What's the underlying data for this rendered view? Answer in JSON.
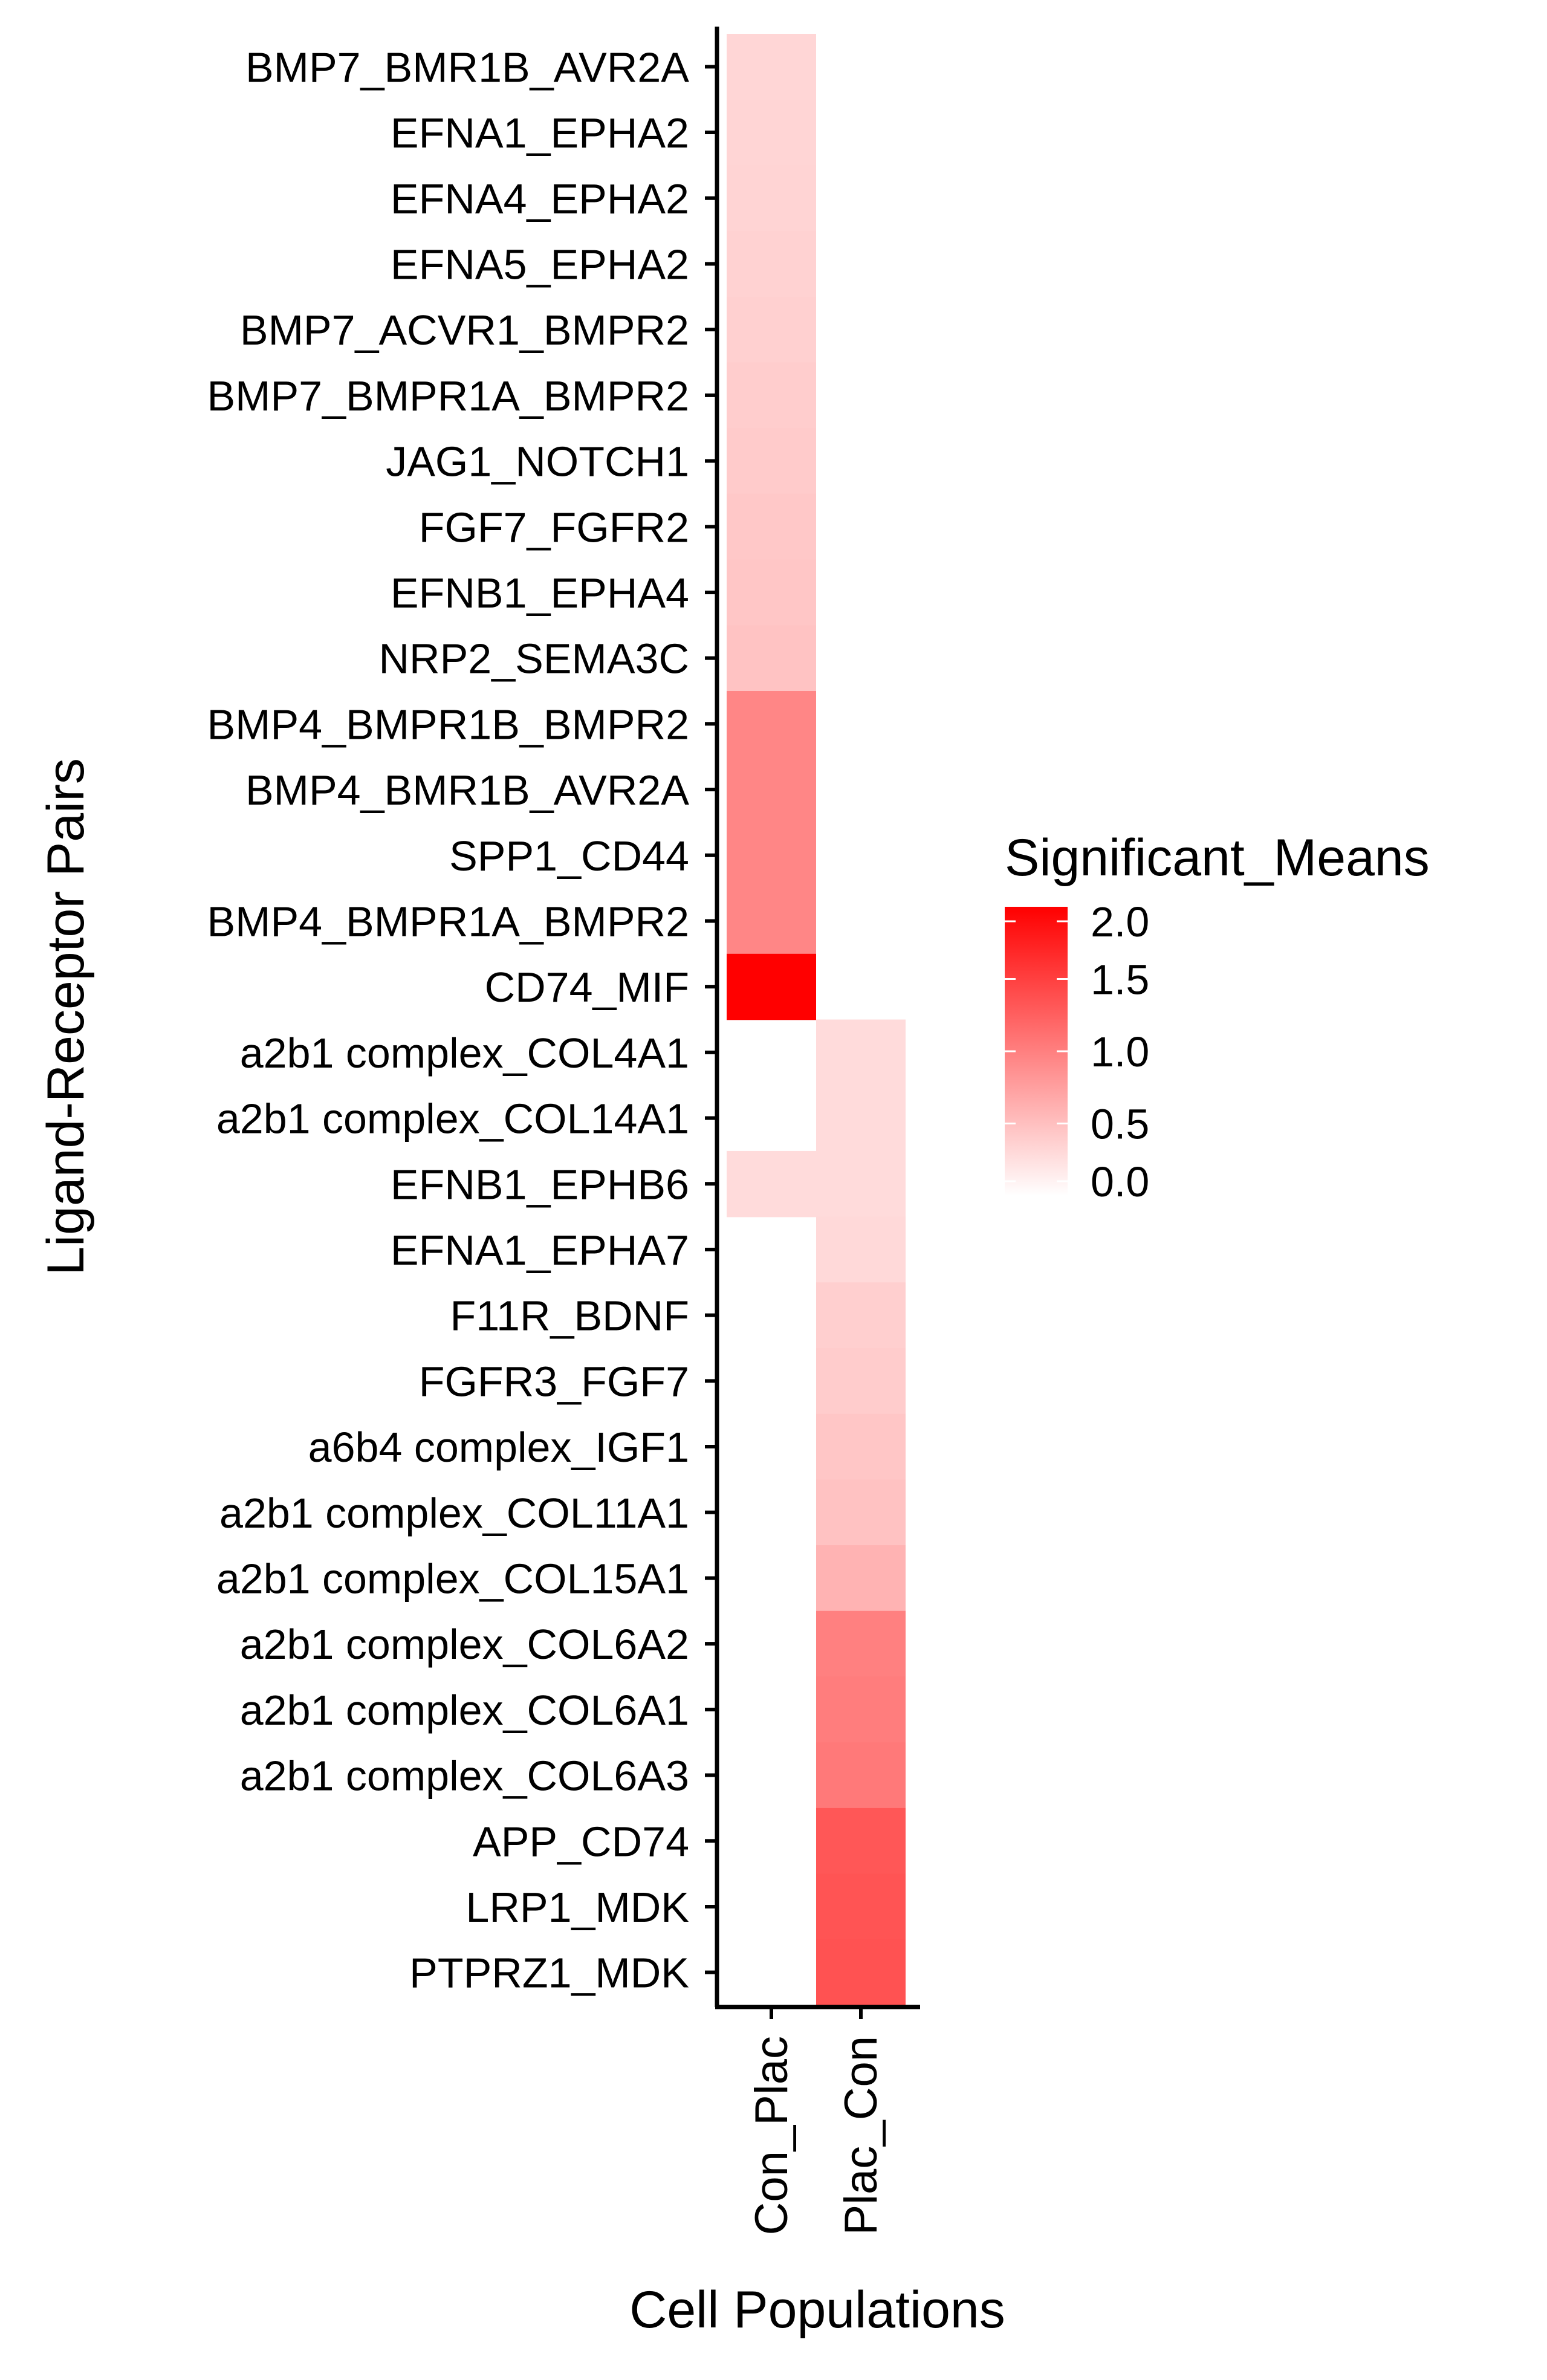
{
  "chart_data": {
    "type": "heatmap",
    "title": "",
    "xlabel": "Cell Populations",
    "ylabel": "Ligand-Receptor Pairs",
    "x_categories": [
      "Con_Plac",
      "Plac_Con"
    ],
    "y_categories": [
      "BMP7_BMR1B_AVR2A",
      "EFNA1_EPHA2",
      "EFNA4_EPHA2",
      "EFNA5_EPHA2",
      "BMP7_ACVR1_BMPR2",
      "BMP7_BMPR1A_BMPR2",
      "JAG1_NOTCH1",
      "FGF7_FGFR2",
      "EFNB1_EPHA4",
      "NRP2_SEMA3C",
      "BMP4_BMPR1B_BMPR2",
      "BMP4_BMR1B_AVR2A",
      "SPP1_CD44",
      "BMP4_BMPR1A_BMPR2",
      "CD74_MIF",
      "a2b1 complex_COL4A1",
      "a2b1 complex_COL14A1",
      "EFNB1_EPHB6",
      "EFNA1_EPHA7",
      "F11R_BDNF",
      "FGFR3_FGF7",
      "a6b4 complex_IGF1",
      "a2b1 complex_COL11A1",
      "a2b1 complex_COL15A1",
      "a2b1 complex_COL6A2",
      "a2b1 complex_COL6A1",
      "a2b1 complex_COL6A3",
      "APP_CD74",
      "LRP1_MDK",
      "PTPRZ1_MDK"
    ],
    "values": [
      [
        0.32,
        null
      ],
      [
        0.33,
        null
      ],
      [
        0.34,
        null
      ],
      [
        0.35,
        null
      ],
      [
        0.37,
        null
      ],
      [
        0.39,
        null
      ],
      [
        0.41,
        null
      ],
      [
        0.43,
        null
      ],
      [
        0.45,
        null
      ],
      [
        0.47,
        null
      ],
      [
        0.95,
        null
      ],
      [
        0.95,
        null
      ],
      [
        0.95,
        null
      ],
      [
        0.95,
        null
      ],
      [
        2.05,
        null
      ],
      [
        null,
        0.28
      ],
      [
        null,
        0.28
      ],
      [
        0.28,
        0.28
      ],
      [
        null,
        0.3
      ],
      [
        null,
        0.38
      ],
      [
        null,
        0.4
      ],
      [
        null,
        0.45
      ],
      [
        null,
        0.48
      ],
      [
        null,
        0.6
      ],
      [
        null,
        1.0
      ],
      [
        null,
        1.02
      ],
      [
        null,
        1.05
      ],
      [
        null,
        1.32
      ],
      [
        null,
        1.34
      ],
      [
        null,
        1.36
      ]
    ],
    "colorbar": {
      "title": "Significant_Means",
      "min": 0.0,
      "max": 2.0,
      "ticks": [
        "0.0",
        "0.5",
        "1.0",
        "1.5",
        "2.0"
      ],
      "low_color": "#ffffff",
      "high_color": "#ff0000"
    },
    "grid": false,
    "legend_position": "right"
  }
}
